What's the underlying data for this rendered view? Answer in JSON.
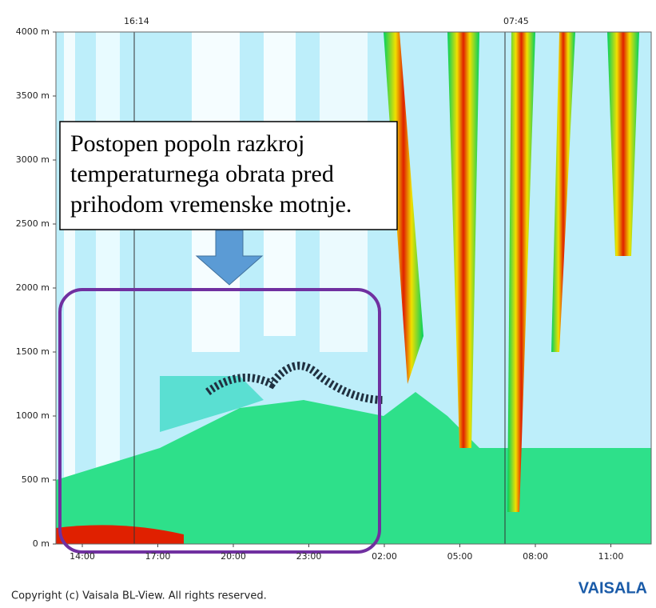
{
  "chart_data": {
    "type": "backscatter",
    "ylim": [
      0,
      4000
    ],
    "yticks": [
      {
        "value": 0,
        "label": "0 m"
      },
      {
        "value": 500,
        "label": "500 m"
      },
      {
        "value": 1000,
        "label": "1000 m"
      },
      {
        "value": 1500,
        "label": "1500 m"
      },
      {
        "value": 2000,
        "label": "2000 m"
      },
      {
        "value": 2500,
        "label": "2500 m"
      },
      {
        "value": 3000,
        "label": "3000 m"
      },
      {
        "value": 3500,
        "label": "3500 m"
      },
      {
        "value": 4000,
        "label": "4000 m"
      }
    ],
    "categories": [
      "14:00",
      "17:00",
      "20:00",
      "23:00",
      "02:00",
      "05:00",
      "08:00",
      "11:00"
    ],
    "sunset": "16:14",
    "sunrise": "07:45",
    "annotation": [
      "Postopen popoln razkroj",
      "temperaturnega obrata pred",
      "prihodom vremenske motnje."
    ],
    "copyright": "Copyright (c) Vaisala BL-View. All rights reserved.",
    "logo": "VAISALA"
  }
}
